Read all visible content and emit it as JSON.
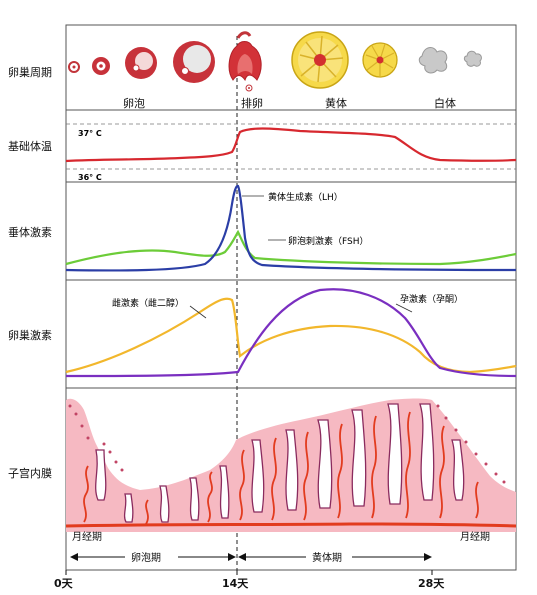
{
  "rows": {
    "ovarian_cycle": "卵巢周期",
    "basal_temp": "基础体温",
    "pituitary": "垂体激素",
    "ovarian_hormone": "卵巢激素",
    "endometrium": "子宫内膜"
  },
  "ovary_labels": {
    "follicle": "卵泡",
    "ovulation": "排卵",
    "corpus_luteum": "黄体",
    "corpus_albicans": "白体"
  },
  "temperature_marks": {
    "high": "37° C",
    "low": "36° C"
  },
  "hormones": {
    "lh": "黄体生成素（LH）",
    "fsh": "卵泡刺激素（FSH）",
    "estrogen": "雌激素（雌二醇）",
    "progesterone": "孕激素（孕酮）"
  },
  "phases": {
    "menses_start": "月经期",
    "menses_end": "月经期",
    "follicular": "卵泡期",
    "luteal": "黄体期"
  },
  "days": {
    "d0": "0天",
    "d14": "14天",
    "d28": "28天"
  },
  "colors": {
    "frame": "#555555",
    "temperature": "#d7282f",
    "lh": "#2b3ea6",
    "fsh": "#6ccc38",
    "estrogen": "#f2b72c",
    "progesterone": "#7a2fc0",
    "endometrium_fill": "#f6b9c2",
    "endometrium_vessel": "#e23b1e",
    "gland": "#8a2b5e"
  }
}
